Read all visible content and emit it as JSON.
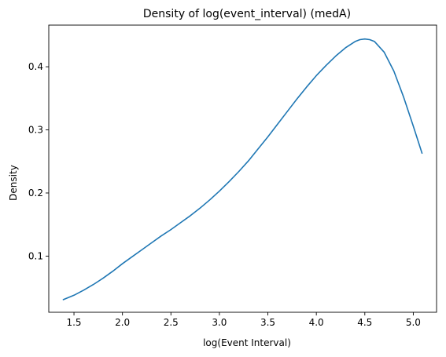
{
  "chart_data": {
    "type": "line",
    "title": "Density of log(event_interval) (medA)",
    "xlabel": "log(Event Interval)",
    "ylabel": "Density",
    "xlim": [
      1.24,
      5.24
    ],
    "ylim": [
      0.011,
      0.466
    ],
    "xticks": [
      "1.5",
      "2.0",
      "2.5",
      "3.0",
      "3.5",
      "4.0",
      "4.5",
      "5.0"
    ],
    "yticks": [
      "0.1",
      "0.2",
      "0.3",
      "0.4"
    ],
    "grid": false,
    "legend": "none",
    "series": [
      {
        "color": "#1f77b4",
        "x": [
          1.39,
          1.5,
          1.6,
          1.7,
          1.8,
          1.9,
          2.0,
          2.1,
          2.2,
          2.3,
          2.4,
          2.5,
          2.6,
          2.7,
          2.8,
          2.9,
          3.0,
          3.1,
          3.2,
          3.3,
          3.4,
          3.5,
          3.6,
          3.7,
          3.8,
          3.9,
          4.0,
          4.1,
          4.2,
          4.3,
          4.4,
          4.45,
          4.5,
          4.55,
          4.6,
          4.7,
          4.8,
          4.9,
          5.0,
          5.09
        ],
        "y": [
          0.031,
          0.038,
          0.046,
          0.055,
          0.065,
          0.076,
          0.088,
          0.099,
          0.11,
          0.121,
          0.132,
          0.142,
          0.153,
          0.164,
          0.176,
          0.189,
          0.203,
          0.218,
          0.234,
          0.251,
          0.27,
          0.289,
          0.309,
          0.329,
          0.349,
          0.368,
          0.386,
          0.402,
          0.417,
          0.43,
          0.44,
          0.443,
          0.444,
          0.443,
          0.44,
          0.423,
          0.393,
          0.352,
          0.306,
          0.263
        ]
      }
    ]
  }
}
